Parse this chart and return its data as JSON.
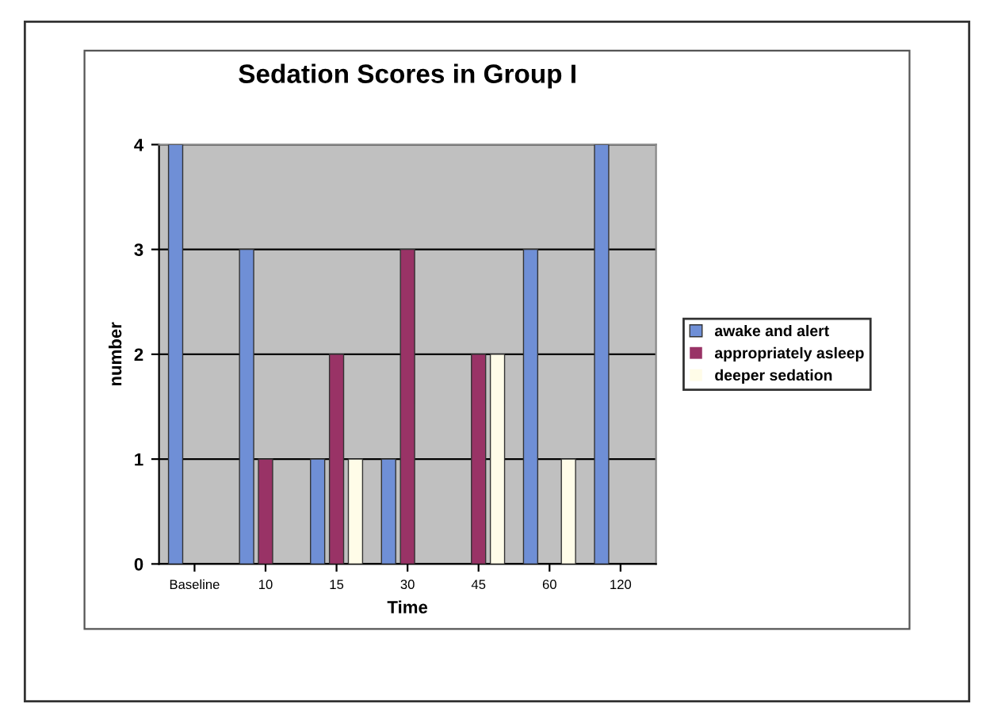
{
  "chart_data": {
    "type": "bar",
    "title": "Sedation Scores in Group I",
    "xlabel": "Time",
    "ylabel": "number",
    "categories": [
      "Baseline",
      "10",
      "15",
      "30",
      "45",
      "60",
      "120"
    ],
    "series": [
      {
        "name": "awake and alert",
        "color": "#6f8fd6",
        "values": [
          4,
          3,
          1,
          1,
          0,
          3,
          4
        ]
      },
      {
        "name": "appropriately asleep",
        "color": "#993366",
        "values": [
          0,
          1,
          2,
          3,
          2,
          0,
          0
        ]
      },
      {
        "name": "deeper sedation",
        "color": "#fffce8",
        "values": [
          0,
          0,
          1,
          0,
          2,
          1,
          0
        ]
      }
    ],
    "ylim": [
      0,
      4
    ],
    "yticks": [
      0,
      1,
      2,
      3,
      4
    ],
    "grid": "y",
    "legend": "right"
  }
}
